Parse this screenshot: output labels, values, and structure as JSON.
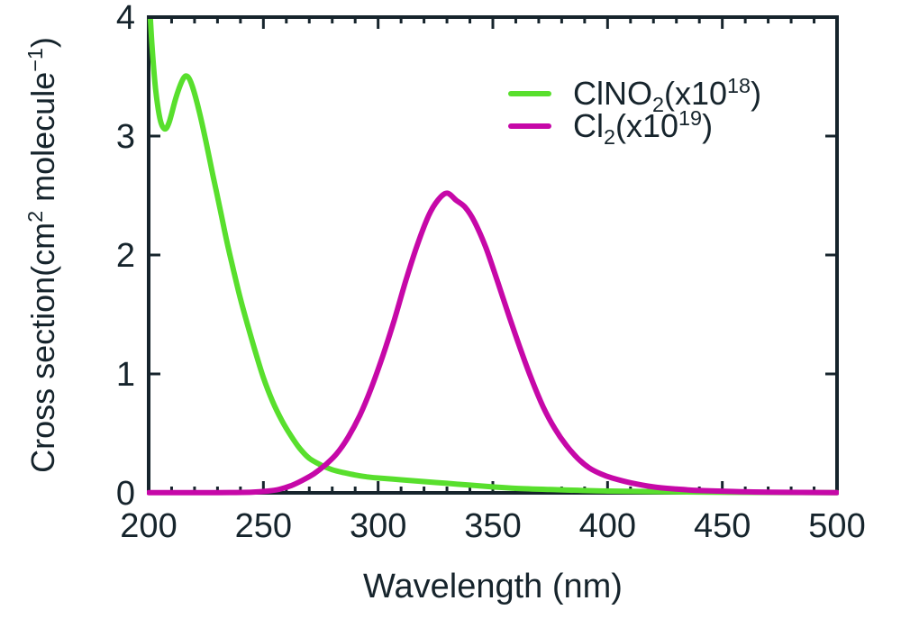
{
  "colors": {
    "text": "#16242c",
    "axis": "#16242c",
    "background": "#ffffff",
    "clno2_green": "#58df2d",
    "cl2_magenta": "#c608a8"
  },
  "axes": {
    "x_title": "Wavelength (nm)",
    "y_title_segments": [
      {
        "t": "Cross section(cm"
      },
      {
        "t": "2",
        "v": "sup"
      },
      {
        "t": " molecule"
      },
      {
        "t": "−1",
        "v": "sup"
      },
      {
        "t": ")"
      }
    ]
  },
  "legend": {
    "items": [
      {
        "id": "clno2",
        "color": "#58df2d",
        "plain_label": "ClNO2(x10^18)",
        "segments": [
          {
            "t": "ClNO"
          },
          {
            "t": "2",
            "v": "sub"
          },
          {
            "t": "(x10"
          },
          {
            "t": "18",
            "v": "sup"
          },
          {
            "t": ")"
          }
        ]
      },
      {
        "id": "cl2",
        "color": "#c608a8",
        "plain_label": "Cl2(x10^19)",
        "segments": [
          {
            "t": "Cl"
          },
          {
            "t": "2",
            "v": "sub"
          },
          {
            "t": "(x10"
          },
          {
            "t": "19",
            "v": "sup"
          },
          {
            "t": ")"
          }
        ]
      }
    ]
  },
  "chart_data": {
    "type": "line",
    "title": "",
    "xlabel": "Wavelength (nm)",
    "ylabel": "Cross section(cm^2 molecule^-1)",
    "xlim": [
      200,
      500
    ],
    "ylim": [
      0,
      4
    ],
    "x_major_ticks": [
      200,
      250,
      300,
      350,
      400,
      450,
      500
    ],
    "x_minor_tick_step": 10,
    "y_major_ticks": [
      0,
      1,
      2,
      3,
      4
    ],
    "grid": false,
    "legend_position": "upper-right-inside",
    "series": [
      {
        "name": "ClNO2 (x10^18 cm^2 molecule^-1)",
        "color": "#58df2d",
        "x": [
          200,
          201.5,
          203,
          205,
          207,
          209,
          212,
          215,
          217,
          219,
          222,
          225,
          228,
          231,
          234,
          237,
          240,
          243,
          246,
          250,
          254,
          258,
          262,
          266,
          270,
          275,
          280,
          285,
          290,
          295,
          300,
          310,
          320,
          330,
          340,
          350,
          360,
          375,
          400,
          430,
          465,
          500
        ],
        "y": [
          4.25,
          3.75,
          3.4,
          3.14,
          3.06,
          3.12,
          3.33,
          3.48,
          3.5,
          3.42,
          3.21,
          2.95,
          2.67,
          2.4,
          2.12,
          1.87,
          1.63,
          1.42,
          1.22,
          0.97,
          0.77,
          0.61,
          0.48,
          0.37,
          0.29,
          0.235,
          0.195,
          0.17,
          0.15,
          0.135,
          0.125,
          0.11,
          0.095,
          0.08,
          0.065,
          0.05,
          0.038,
          0.028,
          0.015,
          0.008,
          0.004,
          0.002
        ]
      },
      {
        "name": "Cl2 (x10^19 cm^2 molecule^-1)",
        "color": "#c608a8",
        "x": [
          200,
          230,
          245,
          252,
          257,
          262,
          267,
          272,
          277,
          282,
          287,
          292,
          297,
          302,
          307,
          312,
          317,
          322,
          326,
          330,
          334,
          338,
          342,
          347,
          352,
          357,
          362,
          367,
          372,
          377,
          382,
          387,
          392,
          397,
          402,
          410,
          420,
          430,
          440,
          455,
          470,
          500
        ],
        "y": [
          0.002,
          0.002,
          0.006,
          0.015,
          0.03,
          0.06,
          0.105,
          0.16,
          0.235,
          0.33,
          0.47,
          0.65,
          0.88,
          1.15,
          1.45,
          1.78,
          2.08,
          2.33,
          2.46,
          2.52,
          2.46,
          2.4,
          2.28,
          2.06,
          1.78,
          1.49,
          1.21,
          0.95,
          0.72,
          0.54,
          0.4,
          0.29,
          0.21,
          0.16,
          0.125,
          0.085,
          0.05,
          0.032,
          0.02,
          0.011,
          0.006,
          0.002
        ]
      }
    ]
  }
}
